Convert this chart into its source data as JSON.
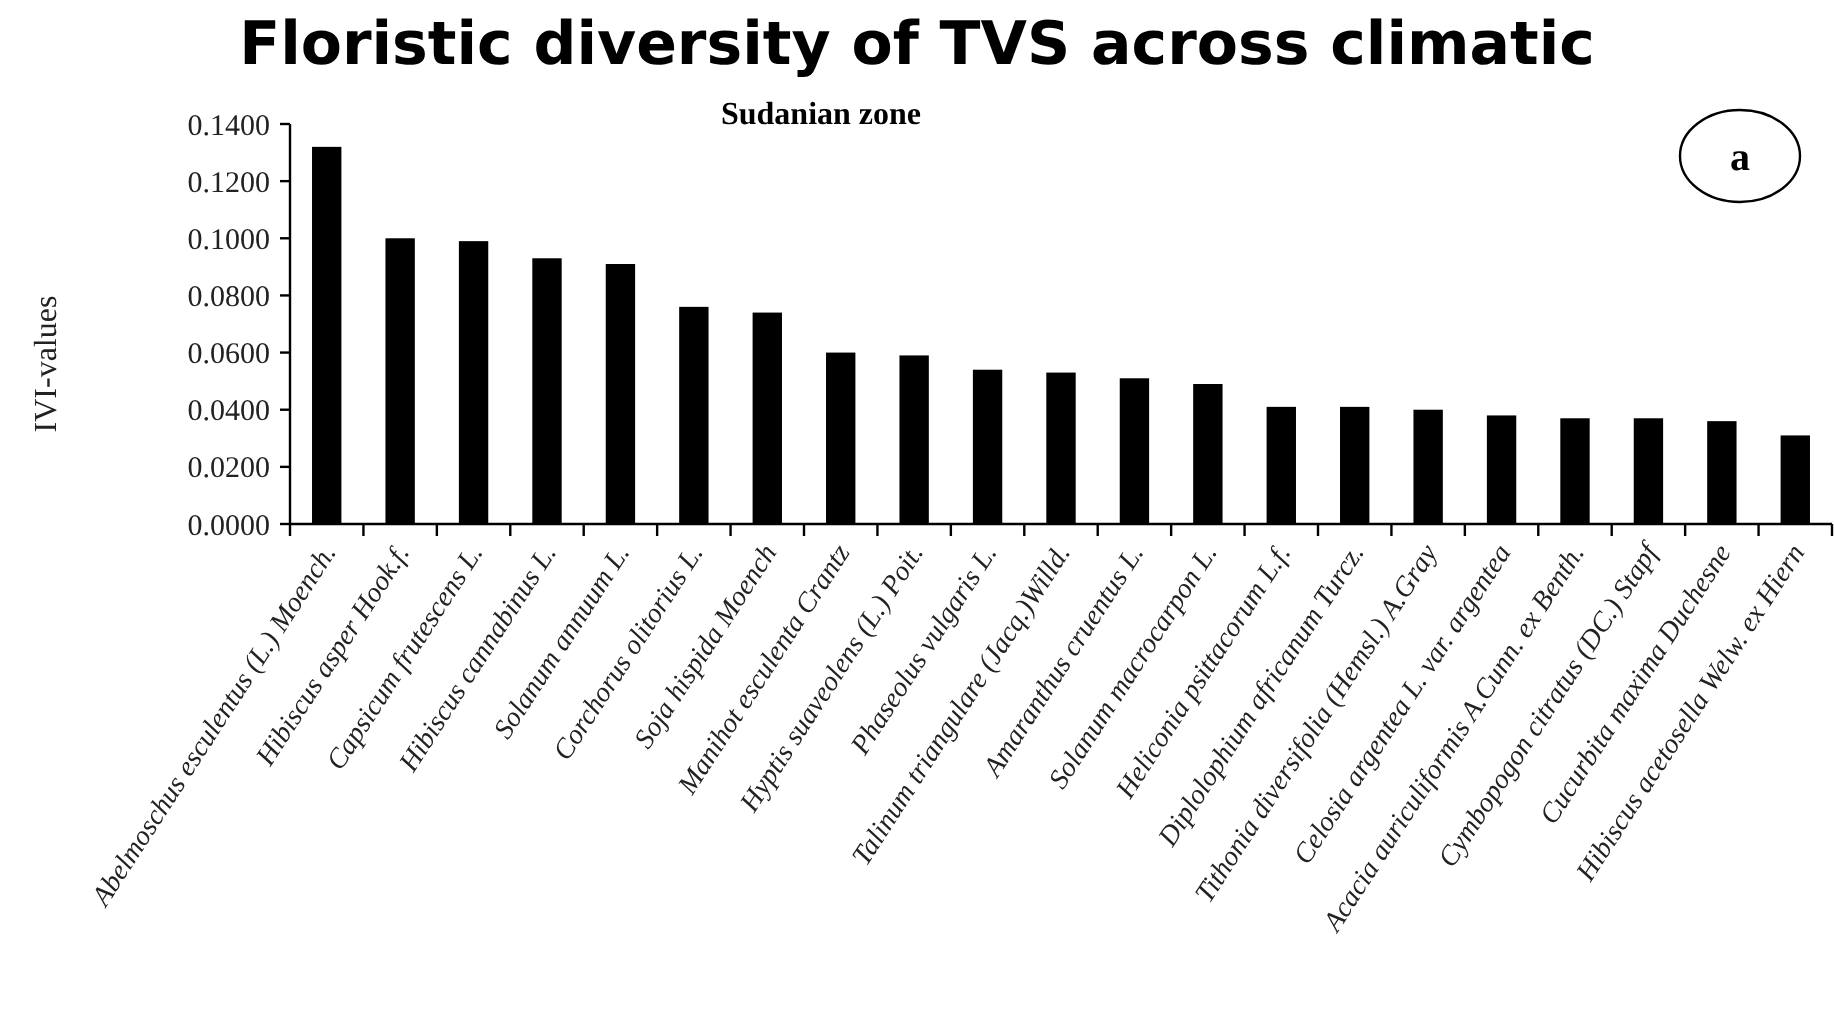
{
  "chart_data": {
    "type": "bar",
    "title": "Floristic diversity of TVS across climatic",
    "subtitle": "Sudanian zone",
    "ylabel": "IVI-values",
    "annotations": [
      "a"
    ],
    "categories": [
      "Abelmoschus esculentus  (L.) Moench.",
      "Hibiscus asper Hook.f.",
      "Capsicum frutescens L.",
      "Hibiscus cannabinus L.",
      "Solanum annuum L.",
      "Corchorus olitorius L.",
      "Soja hispida Moench",
      "Manihot esculenta Crantz",
      "Hyptis suaveolens (L.) Poit.",
      "Phaseolus vulgaris L.",
      "Talinum triangulare (Jacq.)Willd.",
      "Amaranthus cruentus L.",
      "Solanum macrocarpon  L.",
      "Heliconia psittacorum L.f.",
      "Diplolophium africanum Turcz.",
      "Tithonia diversifolia (Hemsl.) A.Gray",
      "Celosia argentea L. var. argentea",
      "Acacia auriculiformis A.Cunn. ex Benth.",
      "Cymbopogon citratus (DC.) Stapf",
      "Cucurbita maxima Duchesne",
      "Hibiscus acetosella Welw. ex Hiern"
    ],
    "values": [
      0.132,
      0.1,
      0.099,
      0.093,
      0.091,
      0.076,
      0.074,
      0.06,
      0.059,
      0.054,
      0.053,
      0.051,
      0.049,
      0.041,
      0.041,
      0.04,
      0.038,
      0.037,
      0.037,
      0.036,
      0.031
    ],
    "color": "#000000",
    "ylim": [
      0,
      0.14
    ],
    "yticks": [
      {
        "value": 0,
        "label": "0.0000"
      },
      {
        "value": 0.02,
        "label": "0.0200"
      },
      {
        "value": 0.04,
        "label": "0.0400"
      },
      {
        "value": 0.06,
        "label": "0.0600"
      },
      {
        "value": 0.08,
        "label": "0.0800"
      },
      {
        "value": 0.1,
        "label": "0.1000"
      },
      {
        "value": 0.12,
        "label": "0.1200"
      },
      {
        "value": 0.14,
        "label": "0.1400"
      }
    ]
  }
}
